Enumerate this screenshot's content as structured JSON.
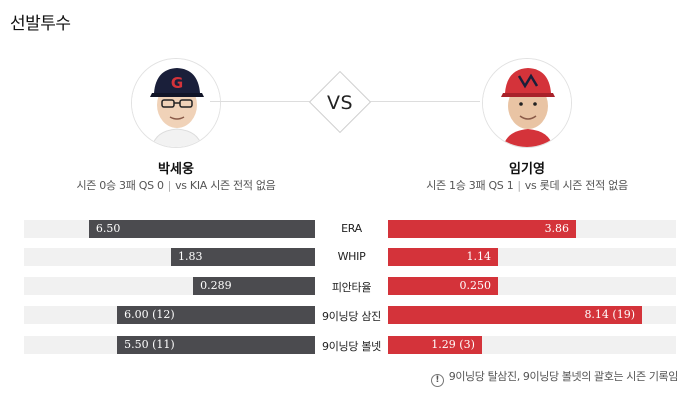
{
  "section_title": "선발투수",
  "vs_label": "VS",
  "left_pitcher": {
    "name": "박세웅",
    "record": "시즌 0승 3패 QS 0",
    "separator": "|",
    "vs_record": "vs KIA 시즌 전적 없음",
    "cap_color": "#1a1f3a",
    "cap_logo_color": "#d4333a"
  },
  "right_pitcher": {
    "name": "임기영",
    "record": "시즌 1승 3패 QS 1",
    "separator": "|",
    "vs_record": "vs 롯데 시즌 전적 없음",
    "cap_color": "#d4333a"
  },
  "colors": {
    "left_bar": "#4b4b4f",
    "right_bar": "#d4333a",
    "track": "#f1f1f1"
  },
  "stats": [
    {
      "label": "ERA",
      "left_value": "6.50",
      "right_value": "3.86",
      "left_fill": 0.777,
      "right_fill": 0.653
    },
    {
      "label": "WHIP",
      "left_value": "1.83",
      "right_value": "1.14",
      "left_fill": 0.495,
      "right_fill": 0.382
    },
    {
      "label": "피안타율",
      "left_value": "0.289",
      "right_value": "0.250",
      "left_fill": 0.419,
      "right_fill": 0.382
    },
    {
      "label": "9이닝당 삼진",
      "left_value": "6.00 (12)",
      "right_value": "8.14 (19)",
      "left_fill": 0.68,
      "right_fill": 0.882
    },
    {
      "label": "9이닝당 볼넷",
      "left_value": "5.50 (11)",
      "right_value": "1.29 (3)",
      "left_fill": 0.68,
      "right_fill": 0.326
    }
  ],
  "footnote": "9이닝당 탈삼진, 9이닝당 볼넷의 괄호는 시즌 기록임",
  "footnote_icon": "!"
}
